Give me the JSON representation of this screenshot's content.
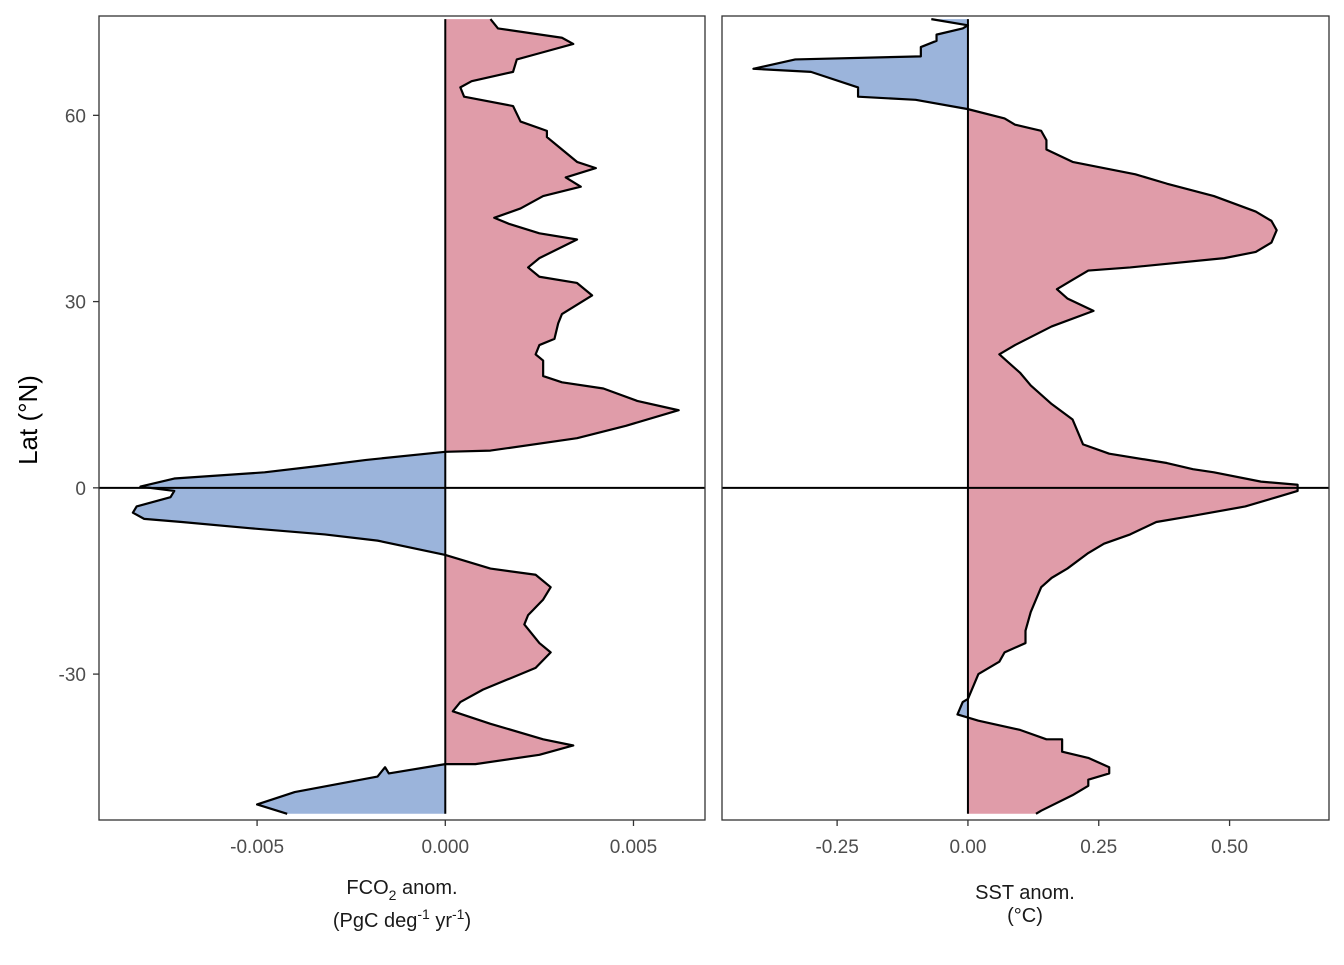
{
  "chart_data": [
    {
      "type": "area",
      "orientation": "horizontal",
      "xlabel_main": "FCO",
      "xlabel_sub": "2",
      "xlabel_tail": " anom.",
      "xlabel_line2_a": "(PgC deg",
      "xlabel_line2_sup1": "-1",
      "xlabel_line2_b": " yr",
      "xlabel_line2_sup2": "-1",
      "xlabel_line2_c": ")",
      "ylabel": "Lat (°N)",
      "xlim": [
        -0.0092,
        0.0069
      ],
      "ylim": [
        -53.5,
        76
      ],
      "xticks": [
        -0.005,
        0.0,
        0.005
      ],
      "xtick_labels": [
        "-0.005",
        "0.000",
        "0.005"
      ],
      "yticks": [
        -30,
        0,
        30,
        60
      ],
      "ytick_labels": [
        "-30",
        "0",
        "30",
        "60"
      ],
      "positive_color": "#e09ca9",
      "negative_color": "#9bb4db",
      "points": [
        [
          -0.0042,
          -52.5
        ],
        [
          -0.005,
          -51.0
        ],
        [
          -0.004,
          -49.0
        ],
        [
          -0.0018,
          -46.5
        ],
        [
          -0.0016,
          -45.0
        ],
        [
          -0.0015,
          -46.0
        ],
        [
          0.0,
          -44.5
        ],
        [
          0.0008,
          -44.5
        ],
        [
          0.0025,
          -43.0
        ],
        [
          0.0034,
          -41.5
        ],
        [
          0.0026,
          -40.5
        ],
        [
          0.0012,
          -38.0
        ],
        [
          0.0002,
          -36.0
        ],
        [
          0.0004,
          -34.5
        ],
        [
          0.001,
          -32.5
        ],
        [
          0.0018,
          -30.5
        ],
        [
          0.0024,
          -29.0
        ],
        [
          0.0028,
          -26.5
        ],
        [
          0.0025,
          -25.0
        ],
        [
          0.0021,
          -22.0
        ],
        [
          0.0022,
          -20.5
        ],
        [
          0.0026,
          -18.0
        ],
        [
          0.0028,
          -16.0
        ],
        [
          0.0024,
          -14.0
        ],
        [
          0.0012,
          -13.0
        ],
        [
          0.0,
          -10.8
        ],
        [
          -0.0018,
          -8.5
        ],
        [
          -0.0032,
          -7.5
        ],
        [
          -0.0052,
          -6.5
        ],
        [
          -0.007,
          -5.5
        ],
        [
          -0.008,
          -5.0
        ],
        [
          -0.0083,
          -4.0
        ],
        [
          -0.0082,
          -3.0
        ],
        [
          -0.0073,
          -1.5
        ],
        [
          -0.0072,
          -0.5
        ],
        [
          -0.0081,
          0.2
        ],
        [
          -0.0072,
          1.5
        ],
        [
          -0.0048,
          2.5
        ],
        [
          -0.0034,
          3.5
        ],
        [
          -0.0021,
          4.5
        ],
        [
          0.0,
          5.8
        ],
        [
          0.0012,
          6.0
        ],
        [
          0.0035,
          8.0
        ],
        [
          0.0048,
          10.0
        ],
        [
          0.0062,
          12.5
        ],
        [
          0.0051,
          14.0
        ],
        [
          0.0042,
          16.0
        ],
        [
          0.0031,
          17.0
        ],
        [
          0.0026,
          18.0
        ],
        [
          0.0026,
          20.5
        ],
        [
          0.0024,
          21.5
        ],
        [
          0.0025,
          23.0
        ],
        [
          0.0029,
          24.0
        ],
        [
          0.003,
          26.5
        ],
        [
          0.0031,
          28.0
        ],
        [
          0.0039,
          31.0
        ],
        [
          0.0035,
          33.0
        ],
        [
          0.0025,
          34.0
        ],
        [
          0.0022,
          35.5
        ],
        [
          0.0025,
          37.0
        ],
        [
          0.0035,
          40.0
        ],
        [
          0.0025,
          41.0
        ],
        [
          0.0017,
          42.5
        ],
        [
          0.0013,
          43.5
        ],
        [
          0.002,
          45.0
        ],
        [
          0.0026,
          47.0
        ],
        [
          0.0036,
          48.5
        ],
        [
          0.0032,
          50.0
        ],
        [
          0.004,
          51.5
        ],
        [
          0.0035,
          52.5
        ],
        [
          0.003,
          55.0
        ],
        [
          0.0027,
          56.5
        ],
        [
          0.0027,
          57.5
        ],
        [
          0.002,
          59.0
        ],
        [
          0.0018,
          61.5
        ],
        [
          0.0005,
          63.0
        ],
        [
          0.0004,
          64.5
        ],
        [
          0.0007,
          65.5
        ],
        [
          0.0018,
          67.0
        ],
        [
          0.0019,
          69.0
        ],
        [
          0.0025,
          70.0
        ],
        [
          0.0034,
          71.5
        ],
        [
          0.0031,
          72.5
        ],
        [
          0.0014,
          74.0
        ],
        [
          0.0012,
          75.5
        ]
      ]
    },
    {
      "type": "area",
      "orientation": "horizontal",
      "xlabel_line1": "SST anom.",
      "xlabel_line2": "(°C)",
      "xlim": [
        -0.47,
        0.69
      ],
      "ylim": [
        -53.5,
        76
      ],
      "xticks": [
        -0.25,
        0.0,
        0.25,
        0.5
      ],
      "xtick_labels": [
        "-0.25",
        "0.00",
        "0.25",
        "0.50"
      ],
      "positive_color": "#e09ca9",
      "negative_color": "#9bb4db",
      "points": [
        [
          0.13,
          -52.5
        ],
        [
          0.14,
          -52.0
        ],
        [
          0.2,
          -49.5
        ],
        [
          0.23,
          -48.0
        ],
        [
          0.23,
          -47.0
        ],
        [
          0.27,
          -46.0
        ],
        [
          0.27,
          -45.0
        ],
        [
          0.23,
          -43.5
        ],
        [
          0.18,
          -42.5
        ],
        [
          0.18,
          -40.5
        ],
        [
          0.15,
          -40.5
        ],
        [
          0.1,
          -39.0
        ],
        [
          0.02,
          -37.5
        ],
        [
          -0.02,
          -36.5
        ],
        [
          -0.01,
          -34.5
        ],
        [
          0.0,
          -34.0
        ],
        [
          0.02,
          -30.0
        ],
        [
          0.06,
          -28.0
        ],
        [
          0.07,
          -26.5
        ],
        [
          0.11,
          -25.0
        ],
        [
          0.11,
          -23.0
        ],
        [
          0.12,
          -20.0
        ],
        [
          0.13,
          -18.0
        ],
        [
          0.14,
          -16.0
        ],
        [
          0.16,
          -14.5
        ],
        [
          0.19,
          -13.0
        ],
        [
          0.23,
          -10.5
        ],
        [
          0.26,
          -9.0
        ],
        [
          0.31,
          -7.5
        ],
        [
          0.36,
          -5.5
        ],
        [
          0.43,
          -4.5
        ],
        [
          0.53,
          -3.0
        ],
        [
          0.59,
          -1.5
        ],
        [
          0.63,
          -0.5
        ],
        [
          0.63,
          0.5
        ],
        [
          0.56,
          1.0
        ],
        [
          0.47,
          2.5
        ],
        [
          0.43,
          3.0
        ],
        [
          0.38,
          4.0
        ],
        [
          0.27,
          5.5
        ],
        [
          0.22,
          7.0
        ],
        [
          0.21,
          9.0
        ],
        [
          0.2,
          11.0
        ],
        [
          0.16,
          13.5
        ],
        [
          0.12,
          16.5
        ],
        [
          0.1,
          18.5
        ],
        [
          0.08,
          20.0
        ],
        [
          0.06,
          21.5
        ],
        [
          0.09,
          23.0
        ],
        [
          0.16,
          26.0
        ],
        [
          0.24,
          28.5
        ],
        [
          0.19,
          30.5
        ],
        [
          0.17,
          32.0
        ],
        [
          0.2,
          33.5
        ],
        [
          0.23,
          35.0
        ],
        [
          0.31,
          35.5
        ],
        [
          0.49,
          37.0
        ],
        [
          0.55,
          38.0
        ],
        [
          0.58,
          39.5
        ],
        [
          0.59,
          41.5
        ],
        [
          0.58,
          43.0
        ],
        [
          0.55,
          44.5
        ],
        [
          0.47,
          47.0
        ],
        [
          0.38,
          49.0
        ],
        [
          0.32,
          50.5
        ],
        [
          0.2,
          52.5
        ],
        [
          0.15,
          54.5
        ],
        [
          0.15,
          56.0
        ],
        [
          0.14,
          57.5
        ],
        [
          0.09,
          58.5
        ],
        [
          0.07,
          59.5
        ],
        [
          0.0,
          61.0
        ],
        [
          -0.1,
          62.5
        ],
        [
          -0.21,
          63.0
        ],
        [
          -0.21,
          64.5
        ],
        [
          -0.3,
          67.0
        ],
        [
          -0.41,
          67.5
        ],
        [
          -0.33,
          69.0
        ],
        [
          -0.09,
          69.5
        ],
        [
          -0.09,
          71.0
        ],
        [
          -0.06,
          72.0
        ],
        [
          -0.06,
          73.0
        ],
        [
          -0.01,
          74.0
        ],
        [
          0.0,
          74.5
        ],
        [
          -0.07,
          75.5
        ]
      ]
    }
  ]
}
